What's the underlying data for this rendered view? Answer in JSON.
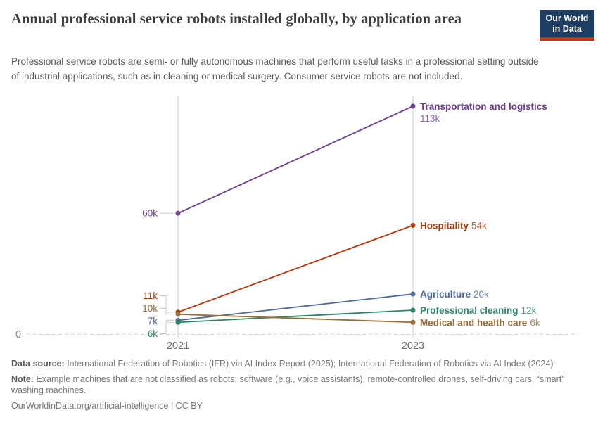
{
  "header": {
    "title": "Annual professional service robots installed globally, by application area",
    "subtitle": "Professional service robots are semi- or fully autonomous machines that perform useful tasks in a professional setting outside of industrial applications, such as in cleaning or medical surgery. Consumer service robots are not included.",
    "logo": {
      "line1": "Our World",
      "line2": "in Data",
      "bg_color": "#1d3d63",
      "stripe_color": "#cf2b22"
    }
  },
  "chart_data": {
    "type": "line",
    "subtype": "slope",
    "title": "Annual professional service robots installed globally, by application area",
    "x": [
      "2021",
      "2023"
    ],
    "x_ticks": [
      "2021",
      "2023"
    ],
    "y_axis": {
      "zero_label": "0",
      "min": 0,
      "max_shown": 113000,
      "grid": "dashed-zero-line"
    },
    "legend_position": "right-of-lines",
    "series": [
      {
        "name": "Transportation and logistics",
        "color": "#6d3e91",
        "values": [
          60000,
          113000
        ],
        "start_label": "60k",
        "end_label": "113k"
      },
      {
        "name": "Hospitality",
        "color": "#b13507",
        "values": [
          11000,
          54000
        ],
        "start_label": "11k",
        "end_label": "54k"
      },
      {
        "name": "Agriculture",
        "color": "#4c6a9c",
        "values": [
          7000,
          20000
        ],
        "start_label": "7k",
        "end_label": "20k"
      },
      {
        "name": "Professional cleaning",
        "color": "#2c8465",
        "values": [
          6000,
          12000
        ],
        "start_label": "6k",
        "end_label": "12k"
      },
      {
        "name": "Medical and health care",
        "color": "#996d39",
        "values": [
          10000,
          6000
        ],
        "start_label": "10k",
        "end_label": "6k"
      }
    ]
  },
  "footer": {
    "data_source_label": "Data source:",
    "data_source_text": " International Federation of Robotics (IFR) via AI Index Report (2025); International Federation of Robotics via AI Index (2024)",
    "note_label": "Note:",
    "note_text": " Example machines that are not classified as robots: software (e.g., voice assistants), remote-controlled drones, self-driving cars, “smart” washing machines.",
    "attribution": "OurWorldinData.org/artificial-intelligence | CC BY"
  }
}
